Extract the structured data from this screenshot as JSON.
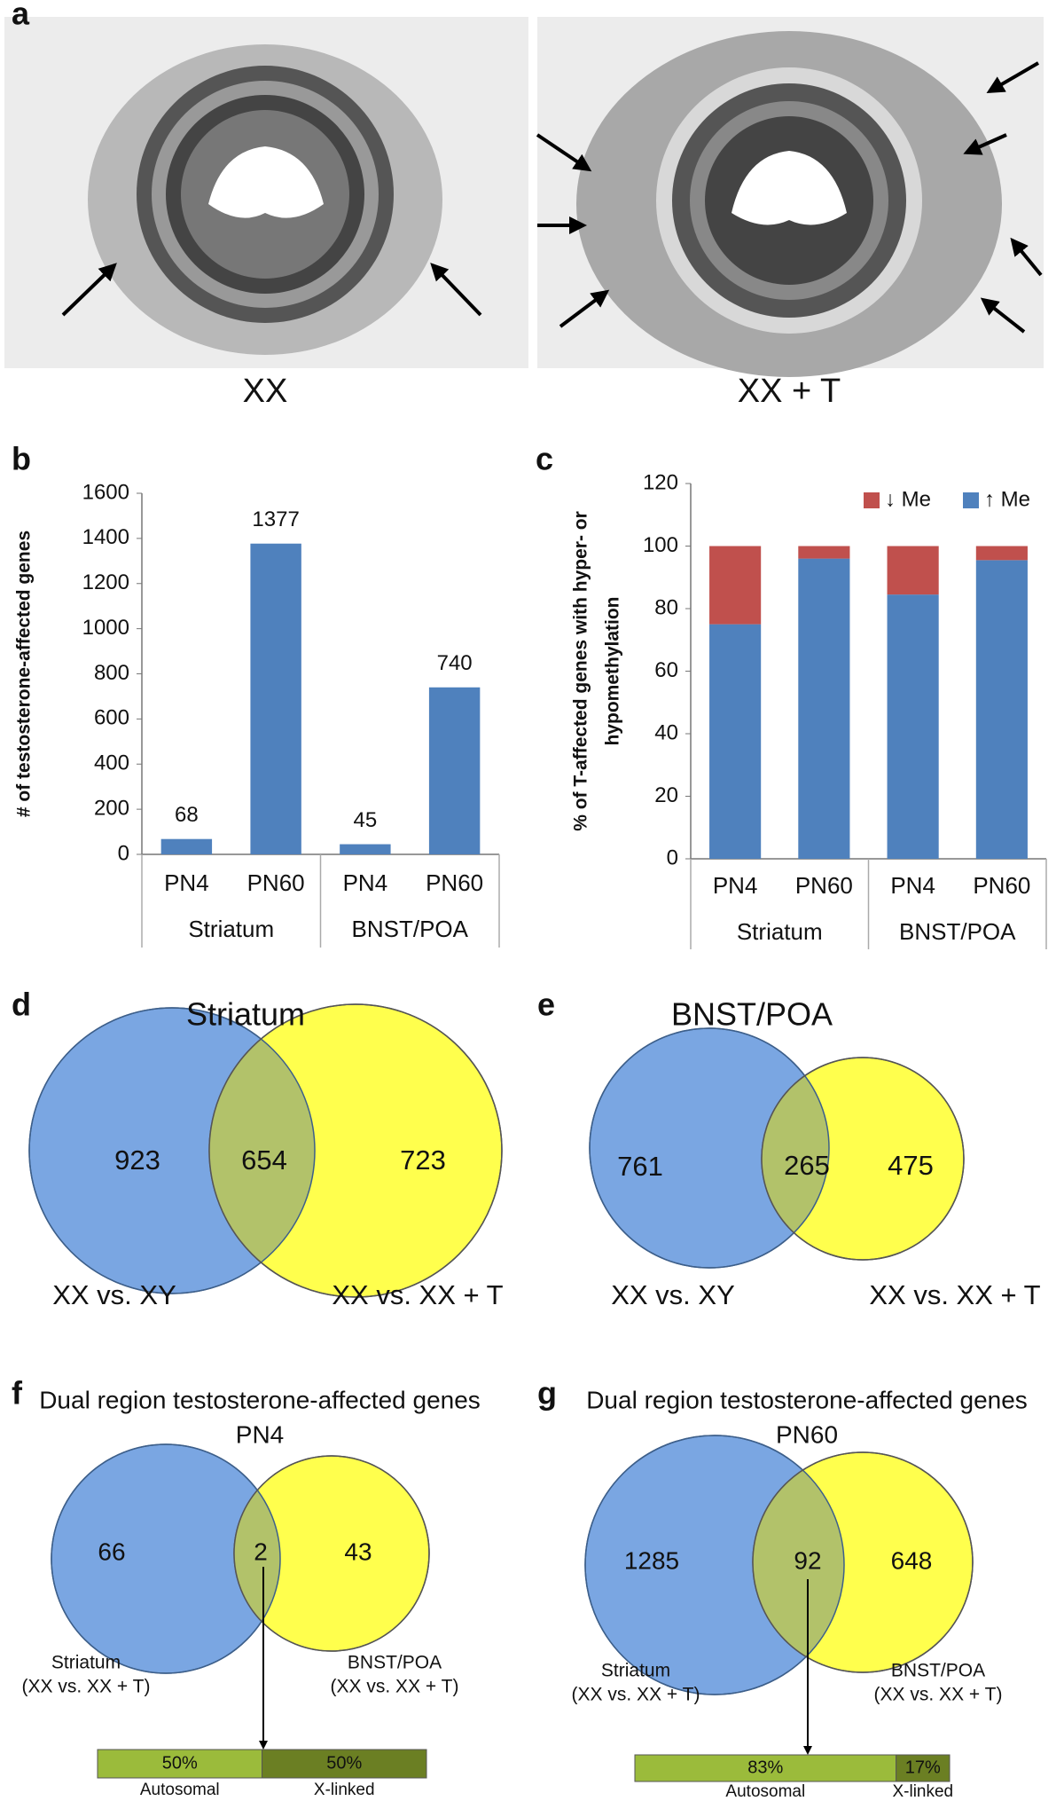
{
  "panel_labels": [
    "a",
    "b",
    "c",
    "d",
    "e",
    "f",
    "g"
  ],
  "images": [
    {
      "label": "XX"
    },
    {
      "label": "XX + T"
    }
  ],
  "chart_data": [
    {
      "type": "bar",
      "ylabel": "# of testosterone-affected genes",
      "categories": [
        "PN4",
        "PN60",
        "PN4",
        "PN60"
      ],
      "groups": [
        "Striatum",
        "BNST/POA"
      ],
      "values": [
        68,
        1377,
        45,
        740
      ],
      "color": "#4f81bd",
      "ylim": [
        0,
        1600
      ],
      "yticks": [
        0,
        200,
        400,
        600,
        800,
        1000,
        1200,
        1400,
        1600
      ]
    },
    {
      "type": "stacked_bar",
      "ylabel": [
        "% of T-affected genes with hyper- or",
        "hypomethylation"
      ],
      "categories": [
        "PN4",
        "PN60",
        "PN4",
        "PN60"
      ],
      "groups": [
        "Striatum",
        "BNST/POA"
      ],
      "series": [
        {
          "name": "↑ Me",
          "color": "#4f81bd",
          "values": [
            75,
            96,
            84.5,
            95.5
          ]
        },
        {
          "name": "↓ Me",
          "color": "#c0504d",
          "values": [
            25,
            4,
            15.5,
            4.5
          ]
        }
      ],
      "legend": "top-right",
      "ylim": [
        0,
        120
      ],
      "yticks": [
        0,
        20,
        40,
        60,
        80,
        100,
        120
      ]
    },
    {
      "type": "venn",
      "title": "Striatum",
      "sets": [
        {
          "name": "XX vs. XY",
          "color": "#7aa6e2",
          "only": 923
        },
        {
          "name": "XX vs. XX + T",
          "color": "#ffff4d",
          "only": 723
        }
      ],
      "overlap": 654,
      "overlap_color": "#b2c26a"
    },
    {
      "type": "venn",
      "title": "BNST/POA",
      "sets": [
        {
          "name": "XX vs. XY",
          "color": "#7aa6e2",
          "only": 761
        },
        {
          "name": "XX vs. XX + T",
          "color": "#ffff4d",
          "only": 475
        }
      ],
      "overlap": 265,
      "overlap_color": "#b2c26a"
    },
    {
      "type": "venn",
      "title": "Dual region testosterone-affected genes",
      "subtitle": "PN4",
      "sets": [
        {
          "name": [
            "Striatum",
            "(XX vs. XX + T)"
          ],
          "color": "#7aa6e2",
          "only": 66
        },
        {
          "name": [
            "BNST/POA",
            "(XX vs. XX + T)"
          ],
          "color": "#ffff4d",
          "only": 43
        }
      ],
      "overlap": 2,
      "overlap_color": "#b2c26a",
      "breakdown": {
        "categories": [
          "Autosomal",
          "X-linked"
        ],
        "values": [
          50,
          50
        ],
        "value_labels": [
          "50%",
          "50%"
        ],
        "colors": [
          "#9bbb3b",
          "#6b7f23"
        ]
      }
    },
    {
      "type": "venn",
      "title": "Dual region testosterone-affected genes",
      "subtitle": "PN60",
      "sets": [
        {
          "name": [
            "Striatum",
            "(XX vs. XX + T)"
          ],
          "color": "#7aa6e2",
          "only": 1285
        },
        {
          "name": [
            "BNST/POA",
            "(XX vs. XX + T)"
          ],
          "color": "#ffff4d",
          "only": 648
        }
      ],
      "overlap": 92,
      "overlap_color": "#b2c26a",
      "breakdown": {
        "categories": [
          "Autosomal",
          "X-linked"
        ],
        "values": [
          83,
          17
        ],
        "value_labels": [
          "83%",
          "17%"
        ],
        "colors": [
          "#9bbb3b",
          "#6b7f23"
        ]
      }
    }
  ]
}
